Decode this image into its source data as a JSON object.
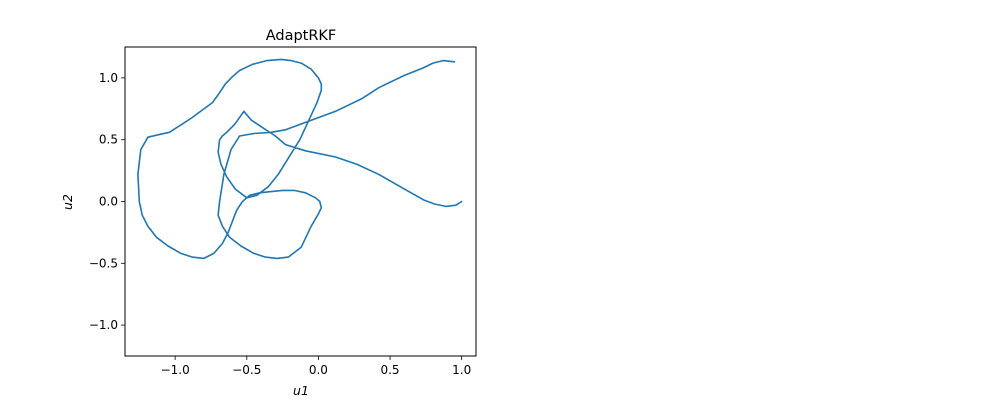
{
  "chart_data": {
    "type": "line",
    "title": "AdaptRKF",
    "xlabel": "u1",
    "ylabel": "u2",
    "xlim": [
      -1.35,
      1.1
    ],
    "ylim": [
      -1.25,
      1.25
    ],
    "grid": false,
    "xticks": [
      -1.0,
      -0.5,
      0.0,
      0.5,
      1.0
    ],
    "yticks": [
      -1.0,
      -0.5,
      0.0,
      0.5,
      1.0
    ],
    "xtick_labels": [
      "−1.0",
      "−0.5",
      "0.0",
      "0.5",
      "1.0"
    ],
    "ytick_labels": [
      "−1.0",
      "−0.5",
      "0.0",
      "0.5",
      "1.0"
    ],
    "series": [
      {
        "color": "#1f77b4",
        "x": [
          1.0,
          0.96,
          0.89,
          0.81,
          0.74,
          0.6,
          0.42,
          0.27,
          0.12,
          -0.09,
          -0.23,
          -0.3,
          -0.38,
          -0.47,
          -0.52,
          -0.58,
          -0.64,
          -0.67,
          -0.69,
          -0.7,
          -0.68,
          -0.64,
          -0.58,
          -0.5,
          -0.43,
          -0.35,
          -0.28,
          -0.21,
          -0.13,
          -0.07,
          -0.01,
          0.02,
          0.02,
          0.0,
          -0.05,
          -0.12,
          -0.19,
          -0.26,
          -0.36,
          -0.46,
          -0.55,
          -0.6,
          -0.65,
          -0.69,
          -0.74,
          -0.81,
          -0.88,
          -0.96,
          -1.04,
          -1.12,
          -1.19,
          -1.24,
          -1.26,
          -1.25,
          -1.23,
          -1.19,
          -1.13,
          -1.05,
          -0.96,
          -0.88,
          -0.8,
          -0.73,
          -0.67,
          -0.63,
          -0.6,
          -0.57,
          -0.53,
          -0.48,
          -0.41,
          -0.33,
          -0.25,
          -0.17,
          -0.09,
          -0.02,
          0.01,
          0.02,
          0.0,
          -0.05,
          -0.12,
          -0.21,
          -0.29,
          -0.37,
          -0.45,
          -0.54,
          -0.62,
          -0.67,
          -0.7,
          -0.69,
          -0.66,
          -0.61,
          -0.55,
          -0.45,
          -0.33,
          -0.23,
          -0.09,
          0.12,
          0.3,
          0.42,
          0.6,
          0.73,
          0.8,
          0.87,
          0.95
        ],
        "y": [
          0.0,
          -0.03,
          -0.04,
          -0.02,
          0.01,
          0.1,
          0.22,
          0.3,
          0.36,
          0.41,
          0.46,
          0.53,
          0.59,
          0.66,
          0.73,
          0.63,
          0.56,
          0.53,
          0.5,
          0.4,
          0.3,
          0.2,
          0.1,
          0.03,
          0.05,
          0.12,
          0.22,
          0.35,
          0.5,
          0.65,
          0.8,
          0.9,
          0.95,
          1.0,
          1.07,
          1.12,
          1.14,
          1.15,
          1.14,
          1.11,
          1.06,
          1.01,
          0.95,
          0.88,
          0.8,
          0.74,
          0.68,
          0.62,
          0.56,
          0.54,
          0.52,
          0.42,
          0.22,
          0.0,
          -0.11,
          -0.2,
          -0.29,
          -0.36,
          -0.42,
          -0.45,
          -0.46,
          -0.42,
          -0.34,
          -0.25,
          -0.16,
          -0.07,
          0.0,
          0.05,
          0.07,
          0.08,
          0.09,
          0.09,
          0.07,
          0.03,
          0.0,
          -0.05,
          -0.1,
          -0.2,
          -0.37,
          -0.45,
          -0.46,
          -0.45,
          -0.42,
          -0.36,
          -0.29,
          -0.2,
          -0.11,
          0.0,
          0.22,
          0.42,
          0.53,
          0.55,
          0.56,
          0.58,
          0.64,
          0.73,
          0.83,
          0.92,
          1.02,
          1.08,
          1.12,
          1.14,
          1.13
        ]
      }
    ]
  }
}
